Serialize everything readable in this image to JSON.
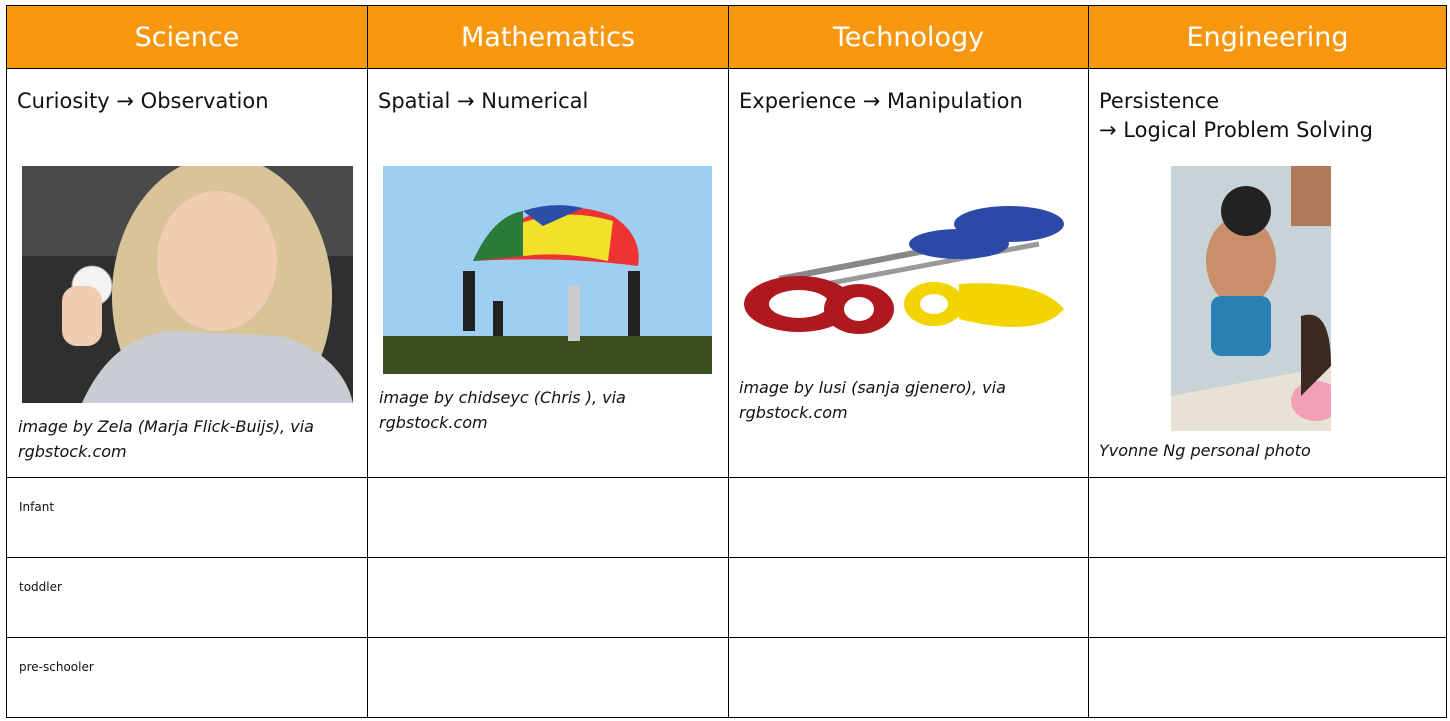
{
  "header": {
    "columns": [
      "Science",
      "Mathematics",
      "Technology",
      "Engineering"
    ]
  },
  "content": [
    {
      "heading_lines": [
        "Curiosity → Observation"
      ],
      "caption": "image by Zela (Marja Flick-Buijs), via rgbstock.com"
    },
    {
      "heading_lines": [
        "Spatial → Numerical"
      ],
      "caption": "image by chidseyc (Chris ), via rgbstock.com"
    },
    {
      "heading_lines": [
        "Experience → Manipulation"
      ],
      "caption": "image by lusi (sanja gjenero), via rgbstock.com"
    },
    {
      "heading_lines": [
        "Persistence",
        "→ Logical Problem Solving"
      ],
      "caption": "Yvonne Ng personal photo"
    }
  ],
  "rows": [
    "Infant",
    "toddler",
    "pre-schooler"
  ]
}
